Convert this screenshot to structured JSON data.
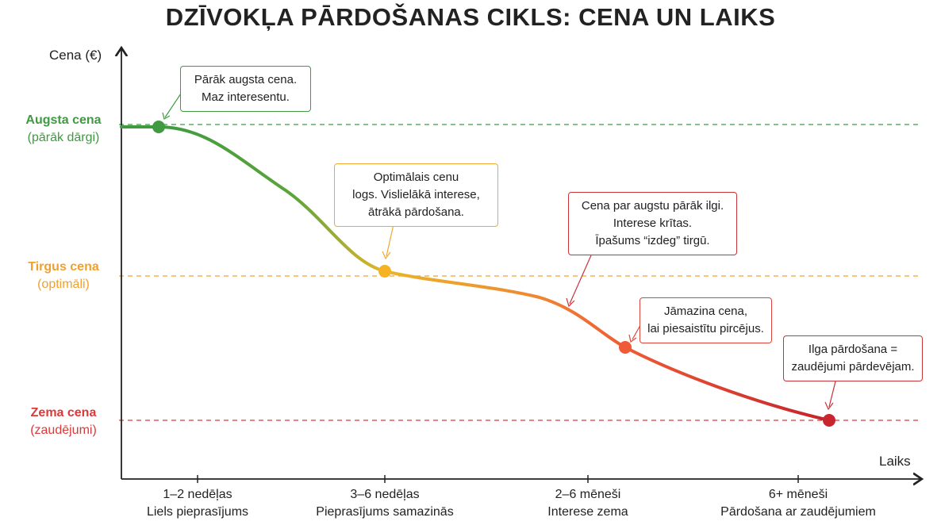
{
  "title": "DZĪVOKĻA PĀRDOŠANAS CIKLS: CENA UN LAIKS",
  "axes": {
    "y_label": "Cena (€)",
    "x_label": "Laiks"
  },
  "levels": [
    {
      "id": "high",
      "label": "Augsta cena",
      "sublabel": "(pārāk dārgi)",
      "color": "#3f9a41"
    },
    {
      "id": "market",
      "label": "Tirgus cena",
      "sublabel": "(optimāli)",
      "color": "#f0a030"
    },
    {
      "id": "low",
      "label": "Zema cena",
      "sublabel": "(zaudējumi)",
      "color": "#d93a3a"
    }
  ],
  "x_categories": [
    {
      "period": "1–2 nedēļas",
      "desc": "Liels pieprasījums"
    },
    {
      "period": "3–6 nedēļas",
      "desc": "Pieprasījums samazinās"
    },
    {
      "period": "2–6 mēneši",
      "desc": "Interese zema"
    },
    {
      "period": "6+ mēneši",
      "desc": "Pārdošana ar zaudējumiem"
    }
  ],
  "callouts": [
    {
      "text": "Pārāk augsta cena.\nMaz interesentu.",
      "color": "#3f9a41"
    },
    {
      "text": "Optimālais cenu\nlogs. Vislielākā interese,\nātrākā pārdošana.",
      "color": "#f0a830"
    },
    {
      "text": "Cena par augstu pārāk ilgi.\nInterese krītas.\nĪpašums “izdeg” tirgū.",
      "color": "#c7343a"
    },
    {
      "text": "Jāmazina cena,\nlai piesaistītu pircējus.",
      "color": "#d9453a"
    },
    {
      "text": "Ilga pārdošana =\nzaudējumi pārdevējam.",
      "color": "#c7343a"
    }
  ],
  "points": [
    {
      "name": "high-price-point",
      "color": "#3f9a41"
    },
    {
      "name": "market-price-point",
      "color": "#f5b324"
    },
    {
      "name": "price-cut-point",
      "color": "#f05a38"
    },
    {
      "name": "loss-point",
      "color": "#c8252e"
    }
  ]
}
